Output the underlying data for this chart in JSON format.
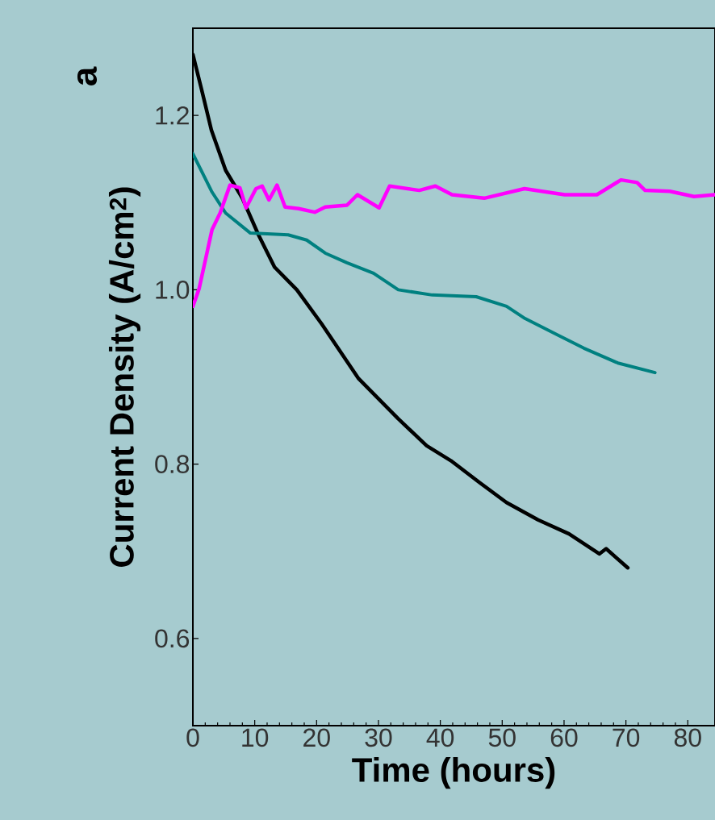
{
  "chart_data": {
    "type": "line",
    "xlabel": "Time (hours)",
    "ylabel": "Current Density  (A/cm$^{2}$)",
    "annotations": [
      "a"
    ],
    "xlim": [
      0,
      84.4
    ],
    "ylim": [
      0.5,
      1.3
    ],
    "xticks": [
      0,
      10,
      20,
      30,
      40,
      50,
      60,
      70,
      80
    ],
    "yticks": [
      {
        "value": 0.6,
        "label": "0.6"
      },
      {
        "value": 0.8,
        "label": "0.8"
      },
      {
        "value": 1.0,
        "label": "1.0"
      },
      {
        "value": 1.2,
        "label": "1.2"
      }
    ],
    "grid": false,
    "marker": "none",
    "line_style": "solid",
    "series": [
      {
        "color": "#000000",
        "x": [
          0,
          1.4,
          3,
          5.3,
          8,
          10.6,
          13.2,
          16.8,
          20.8,
          26.8,
          33.2,
          37.8,
          41.7,
          46.3,
          50.7,
          55.8,
          60.8,
          65.7,
          66.8,
          70.3
        ],
        "values": [
          1.27,
          1.23,
          1.183,
          1.137,
          1.105,
          1.063,
          1.026,
          1.0,
          0.961,
          0.898,
          0.852,
          0.821,
          0.804,
          0.779,
          0.756,
          0.736,
          0.72,
          0.697,
          0.703,
          0.681
        ]
      },
      {
        "color": "#008080",
        "x": [
          0,
          3.1,
          5.3,
          9.3,
          15.4,
          18.4,
          21.4,
          24.9,
          29.2,
          33.2,
          38.7,
          45.8,
          50.7,
          53.7,
          59.3,
          63.2,
          68.7,
          74.7
        ],
        "values": [
          1.156,
          1.112,
          1.088,
          1.065,
          1.063,
          1.057,
          1.042,
          1.031,
          1.019,
          1.0,
          0.994,
          0.992,
          0.981,
          0.967,
          0.947,
          0.933,
          0.916,
          0.905
        ]
      },
      {
        "color": "#ff00ff",
        "x": [
          0,
          1.0,
          3.1,
          4.4,
          6.0,
          7.6,
          8.6,
          10.2,
          11.2,
          12.3,
          13.6,
          14.9,
          17.1,
          19.7,
          21.4,
          24.9,
          26.6,
          30.1,
          31.8,
          36.6,
          39.2,
          41.9,
          47.1,
          53.6,
          60.1,
          65.3,
          69.2,
          71.8,
          73.1,
          77.1,
          81,
          84.4
        ],
        "values": [
          0.981,
          1.001,
          1.069,
          1.088,
          1.12,
          1.117,
          1.094,
          1.116,
          1.119,
          1.103,
          1.12,
          1.095,
          1.093,
          1.089,
          1.095,
          1.097,
          1.109,
          1.094,
          1.119,
          1.114,
          1.119,
          1.109,
          1.105,
          1.116,
          1.109,
          1.109,
          1.126,
          1.123,
          1.114,
          1.113,
          1.107,
          1.109
        ]
      }
    ]
  }
}
